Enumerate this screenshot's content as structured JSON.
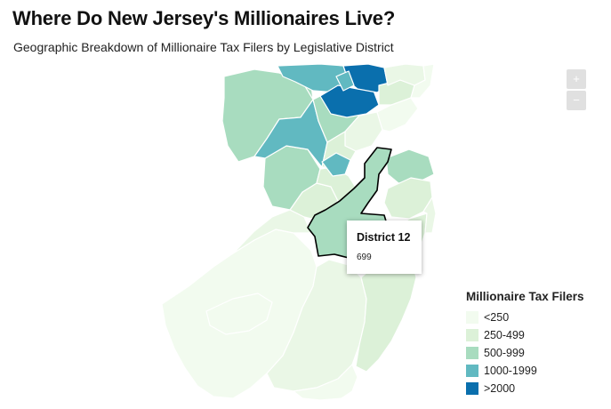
{
  "title": "Where Do New Jersey's Millionaires Live?",
  "subtitle": "Geographic Breakdown of Millionaire Tax Filers by Legislative District",
  "zoom": {
    "in_label": "+",
    "out_label": "−"
  },
  "tooltip": {
    "district": "District 12",
    "value": "699"
  },
  "legend": {
    "title": "Millionaire Tax Filers",
    "items": [
      {
        "label": "<250",
        "color": "#f2fbef"
      },
      {
        "label": "250-499",
        "color": "#dcf1d8"
      },
      {
        "label": "500-999",
        "color": "#a8dcbf"
      },
      {
        "label": "1000-1999",
        "color": "#61b9c1"
      },
      {
        "label": ">2000",
        "color": "#0a6fad"
      }
    ]
  }
}
